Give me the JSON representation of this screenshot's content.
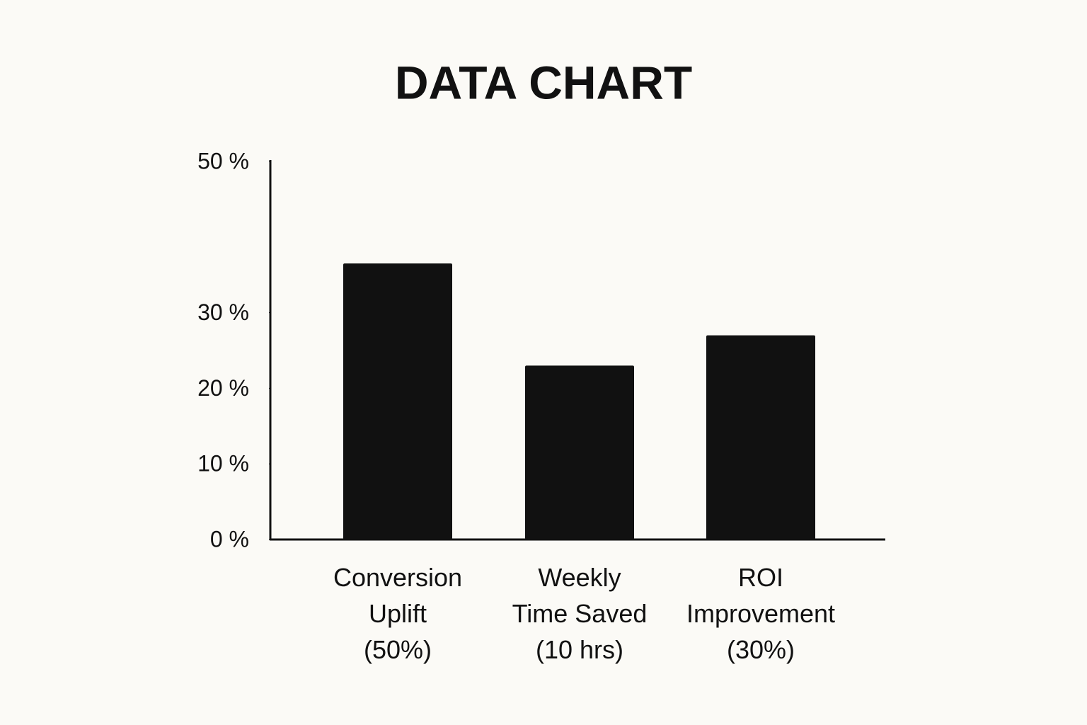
{
  "chart_data": {
    "type": "bar",
    "title": "DATA CHART",
    "categories": [
      "Conversion\nUplift\n(50%)",
      "Weekly\nTime Saved\n(10 hrs)",
      "ROI\nImprovement\n(30%)"
    ],
    "values": [
      36.5,
      23,
      27
    ],
    "color": "#111111",
    "ylim": [
      0,
      50
    ],
    "yticks": [
      {
        "value": 0,
        "label": "0 %"
      },
      {
        "value": 10,
        "label": "10 %"
      },
      {
        "value": 20,
        "label": "20 %"
      },
      {
        "value": 30,
        "label": "30 %"
      },
      {
        "value": 50,
        "label": "50 %"
      }
    ],
    "grid": false
  }
}
